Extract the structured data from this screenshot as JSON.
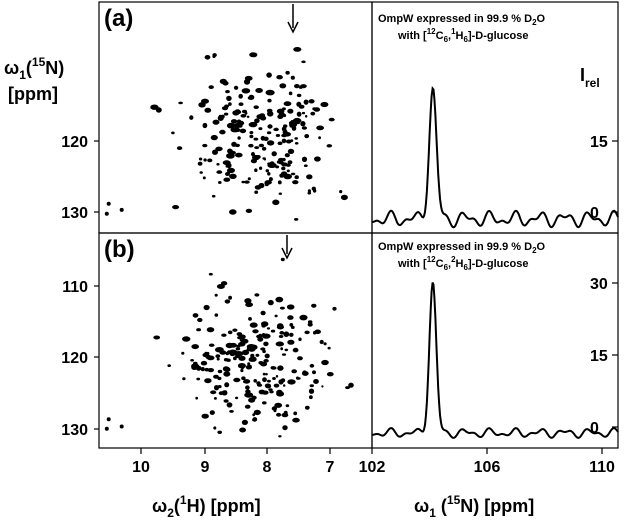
{
  "chart_data": [
    {
      "panel": "(a)",
      "type": "scatter",
      "description_kind": "2D NMR spectrum peaks",
      "x_axis": {
        "ticks": [
          10,
          9,
          8,
          7
        ],
        "range": [
          10.7,
          6.5
        ],
        "reversed": true
      },
      "y_axis": {
        "ticks": [
          120,
          130
        ],
        "range": [
          103,
          133
        ],
        "reversed": true
      },
      "arrow_at_x": 7.45,
      "peak_seed": 11,
      "peak_count": 230,
      "corner_peaks": [
        [
          10.55,
          129.2
        ],
        [
          10.35,
          130.0
        ],
        [
          10.58,
          130.5
        ]
      ]
    },
    {
      "panel": "(a)",
      "type": "line",
      "annotation_line1": "OmpW expressed in 99.9 % D2O",
      "annotation_line2": "with [12C6,1H6]-D-glucose",
      "x_range": [
        102,
        110.5
      ],
      "y_range": [
        -2,
        31
      ],
      "peak_center": 104.1,
      "peak_height": 18.5,
      "peak_width": 0.18,
      "baseline_amplitude": 1.2
    },
    {
      "panel": "(b)",
      "type": "scatter",
      "description_kind": "2D NMR spectrum peaks",
      "x_axis": {
        "ticks": [
          10,
          9,
          8,
          7
        ],
        "range": [
          10.7,
          6.5
        ],
        "reversed": true
      },
      "y_axis": {
        "ticks": [
          110,
          120,
          130
        ],
        "range": [
          103,
          133
        ],
        "reversed": true
      },
      "arrow_at_x": 7.45,
      "peak_seed": 29,
      "peak_count": 240,
      "corner_peaks": [
        [
          10.55,
          129.0
        ],
        [
          10.35,
          130.0
        ],
        [
          10.58,
          130.3
        ]
      ]
    },
    {
      "panel": "(b)",
      "type": "line",
      "annotation_line1": "OmpW expressed in 99.9 % D2O",
      "annotation_line2": "with [12C6,2H6]-D-glucose",
      "x_range": [
        102,
        110.5
      ],
      "y_range": [
        -3,
        40
      ],
      "x_ticks": [
        102,
        106,
        110
      ],
      "peak_center": 104.1,
      "peak_height": 30,
      "peak_width": 0.17,
      "baseline_amplitude": 1.0
    }
  ],
  "labels": {
    "panel_a": "(a)",
    "panel_b": "(b)",
    "y_title_left_main": "ω",
    "y_title_left_sub": "1",
    "y_title_left_paren": "(",
    "y_title_left_sup": "15",
    "y_title_left_rest": "N)",
    "y_title_left_unit": "[ppm]",
    "x_title_left_main": "ω",
    "x_title_left_sub": "2",
    "x_title_left_paren": "(",
    "x_title_left_sup": "1",
    "x_title_left_rest": "H) [ppm]",
    "x_title_right_main": "ω",
    "x_title_right_sub": "1",
    "x_title_right_paren": " (",
    "x_title_right_sup": "15",
    "x_title_right_rest": "N) [ppm]",
    "right_axis_title": "I",
    "right_axis_sub": "rel",
    "arrow_glyph": "↓",
    "ann_a_l1_pre": "OmpW expressed in 99.9 % D",
    "ann_a_l1_sub": "2",
    "ann_a_l1_post": "O",
    "ann_a_l2_pre": "with [",
    "ann_a_l2_sup1": "12",
    "ann_a_l2_mid1": "C",
    "ann_a_l2_sub1": "6",
    "ann_a_l2_mid2": ",",
    "ann_a_l2_sup2": "1",
    "ann_a_l2_mid3": "H",
    "ann_a_l2_sub2": "6",
    "ann_a_l2_post": "]-D-glucose",
    "ann_b_l1_pre": "OmpW expressed in 99.9 % D",
    "ann_b_l1_sub": "2",
    "ann_b_l1_post": "O",
    "ann_b_l2_pre": "with [",
    "ann_b_l2_sup1": "12",
    "ann_b_l2_mid1": "C",
    "ann_b_l2_sub1": "6",
    "ann_b_l2_mid2": ",",
    "ann_b_l2_sup2": "2",
    "ann_b_l2_mid3": "H",
    "ann_b_l2_sub2": "6",
    "ann_b_l2_post": "]-D-glucose"
  },
  "ticks": {
    "left_a_y": [
      "120",
      "130"
    ],
    "left_b_y": [
      "110",
      "120",
      "130"
    ],
    "left_x": [
      "10",
      "9",
      "8",
      "7"
    ],
    "right_a_y": [
      "15",
      "0"
    ],
    "right_b_y": [
      "30",
      "15",
      "0"
    ],
    "right_x": [
      "102",
      "106",
      "110"
    ]
  }
}
